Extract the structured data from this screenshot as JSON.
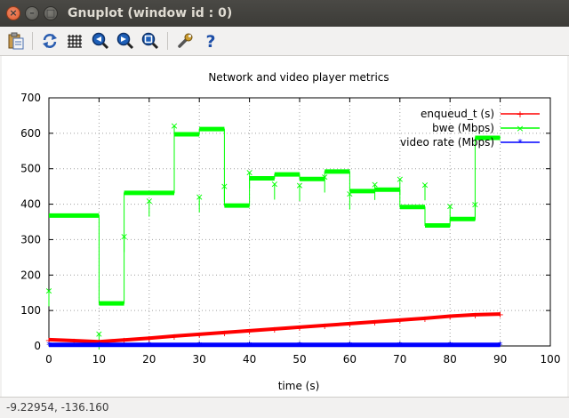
{
  "window": {
    "title": "Gnuplot (window id : 0)"
  },
  "toolbar": {
    "icons": [
      "clipboard-icon",
      "replot-icon",
      "grid-icon",
      "zoom-prev-icon",
      "zoom-next-icon",
      "autoscale-icon",
      "settings-icon",
      "help-icon"
    ],
    "help_label": "?"
  },
  "status": {
    "coords": "-9.22954, -136.160"
  },
  "colors": {
    "enqueued": "#ff0000",
    "bwe": "#00ff00",
    "video": "#0000ff"
  },
  "chart_data": {
    "type": "line",
    "title": "Network and video player metrics",
    "xlabel": "time (s)",
    "ylabel": "",
    "xlim": [
      0,
      100
    ],
    "ylim": [
      0,
      700
    ],
    "xticks": [
      0,
      10,
      20,
      30,
      40,
      50,
      60,
      70,
      80,
      90,
      100
    ],
    "yticks": [
      0,
      100,
      200,
      300,
      400,
      500,
      600,
      700
    ],
    "grid": true,
    "legend_position": "top-right",
    "series": [
      {
        "name": "enqueud_t (s)",
        "color": "#ff0000",
        "x": [
          0,
          5,
          10,
          15,
          20,
          25,
          30,
          35,
          40,
          45,
          50,
          55,
          60,
          65,
          70,
          75,
          80,
          85,
          90
        ],
        "y": [
          18,
          15,
          12,
          17,
          22,
          28,
          33,
          38,
          43,
          48,
          53,
          58,
          63,
          68,
          73,
          78,
          84,
          88,
          90
        ]
      },
      {
        "name": "bwe (Mbps)",
        "color": "#00ff00",
        "steps": [
          {
            "x0": 0,
            "x1": 10,
            "y": 368
          },
          {
            "x0": 10,
            "x1": 15,
            "y": 120
          },
          {
            "x0": 15,
            "x1": 25,
            "y": 432
          },
          {
            "x0": 25,
            "x1": 30,
            "y": 597
          },
          {
            "x0": 30,
            "x1": 35,
            "y": 612
          },
          {
            "x0": 35,
            "x1": 40,
            "y": 396
          },
          {
            "x0": 40,
            "x1": 45,
            "y": 473
          },
          {
            "x0": 45,
            "x1": 50,
            "y": 484
          },
          {
            "x0": 50,
            "x1": 55,
            "y": 471
          },
          {
            "x0": 55,
            "x1": 60,
            "y": 492
          },
          {
            "x0": 60,
            "x1": 65,
            "y": 437
          },
          {
            "x0": 65,
            "x1": 70,
            "y": 441
          },
          {
            "x0": 70,
            "x1": 75,
            "y": 392
          },
          {
            "x0": 75,
            "x1": 80,
            "y": 340
          },
          {
            "x0": 80,
            "x1": 85,
            "y": 358
          },
          {
            "x0": 85,
            "x1": 90,
            "y": 587
          }
        ],
        "spikes": [
          {
            "x": 0,
            "y": 157
          },
          {
            "x": 10,
            "y": 35
          },
          {
            "x": 15,
            "y": 310
          },
          {
            "x": 20,
            "y": 410
          },
          {
            "x": 25,
            "y": 622
          },
          {
            "x": 30,
            "y": 422
          },
          {
            "x": 35,
            "y": 452
          },
          {
            "x": 40,
            "y": 490
          },
          {
            "x": 45,
            "y": 458
          },
          {
            "x": 50,
            "y": 454
          },
          {
            "x": 55,
            "y": 478
          },
          {
            "x": 60,
            "y": 430
          },
          {
            "x": 65,
            "y": 457
          },
          {
            "x": 70,
            "y": 472
          },
          {
            "x": 75,
            "y": 456
          },
          {
            "x": 80,
            "y": 395
          },
          {
            "x": 85,
            "y": 400
          }
        ]
      },
      {
        "name": "video rate (Mbps)",
        "color": "#0000ff",
        "x": [
          0,
          90
        ],
        "y": [
          3,
          3
        ]
      }
    ]
  }
}
